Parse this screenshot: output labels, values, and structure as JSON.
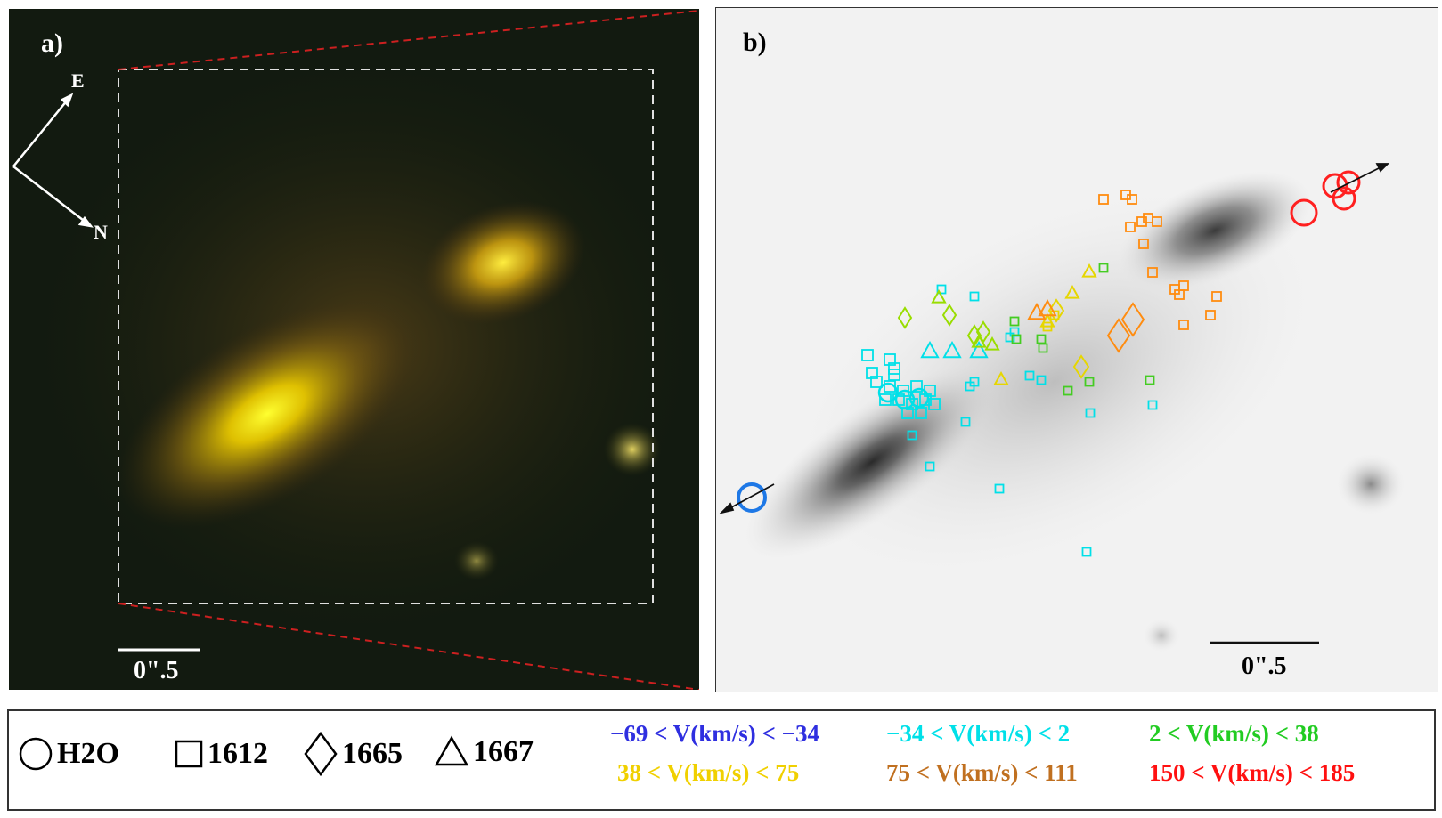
{
  "panels": {
    "a": {
      "label": "a)",
      "scale_label": "0\".5",
      "compass": {
        "east": "E",
        "north": "N"
      }
    },
    "b": {
      "label": "b)",
      "scale_label": "0\".5"
    }
  },
  "legend": {
    "symbols": [
      {
        "icon": "circle-icon",
        "label": "H2O"
      },
      {
        "icon": "square-icon",
        "label": "1612"
      },
      {
        "icon": "diamond-icon",
        "label": "1665"
      },
      {
        "icon": "triangle-icon",
        "label": "1667"
      }
    ],
    "velocity_ranges": [
      {
        "label": "−69 < V(km/s) < −34",
        "color": "#2f2fe0"
      },
      {
        "label": "−34 < V(km/s) < 2",
        "color": "#00e0e8"
      },
      {
        "label": "2 < V(km/s) < 38",
        "color": "#22cc22"
      },
      {
        "label": "38 < V(km/s) < 75",
        "color": "#f0d000"
      },
      {
        "label": "75 < V(km/s) < 111",
        "color": "#c07020"
      },
      {
        "label": "150 < V(km/s) < 185",
        "color": "#ff1010"
      }
    ]
  },
  "colors": {
    "blue": "#1e78e6",
    "cyan": "#00e0e8",
    "lime": "#99dd00",
    "green": "#44cc22",
    "yellow": "#e6d600",
    "orange": "#ff8c10",
    "red": "#ff2020"
  }
}
